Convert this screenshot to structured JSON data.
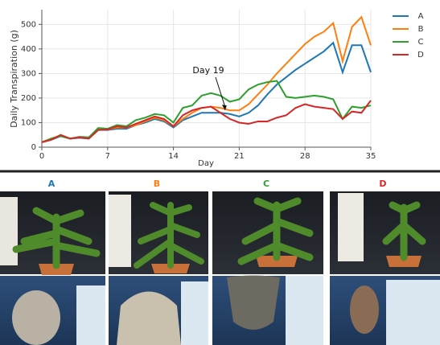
{
  "chart_data": {
    "type": "line",
    "x_label": "Day",
    "y_label": "Daily Transpiration (g)",
    "annotation": "Day 19",
    "x": [
      0,
      1,
      2,
      3,
      4,
      5,
      6,
      7,
      8,
      9,
      10,
      11,
      12,
      13,
      14,
      15,
      16,
      17,
      18,
      19,
      20,
      21,
      22,
      23,
      24,
      25,
      26,
      27,
      28,
      29,
      30,
      31,
      32,
      33,
      34,
      35
    ],
    "xlim": [
      0,
      35
    ],
    "xticks": [
      0,
      7,
      14,
      21,
      28,
      35
    ],
    "ylim": [
      0,
      560
    ],
    "yticks": [
      0,
      100,
      200,
      300,
      400,
      500
    ],
    "grid": true,
    "legend": "top-right",
    "series": [
      {
        "name": "A",
        "color": "#1f77b4",
        "values": [
          20,
          30,
          45,
          35,
          38,
          35,
          70,
          70,
          75,
          75,
          90,
          100,
          115,
          105,
          80,
          110,
          125,
          140,
          140,
          140,
          135,
          125,
          140,
          170,
          215,
          255,
          285,
          315,
          340,
          365,
          390,
          425,
          305,
          415,
          415,
          305
        ]
      },
      {
        "name": "B",
        "color": "#ff7f0e",
        "values": [
          20,
          35,
          48,
          35,
          40,
          38,
          75,
          72,
          80,
          80,
          90,
          105,
          120,
          110,
          85,
          115,
          140,
          160,
          165,
          160,
          150,
          150,
          175,
          215,
          255,
          300,
          340,
          380,
          420,
          450,
          470,
          505,
          350,
          490,
          530,
          415
        ]
      },
      {
        "name": "C",
        "color": "#2ca02c",
        "values": [
          20,
          35,
          45,
          35,
          42,
          40,
          78,
          75,
          90,
          85,
          110,
          120,
          135,
          130,
          100,
          160,
          170,
          210,
          220,
          210,
          185,
          195,
          235,
          255,
          265,
          270,
          205,
          200,
          205,
          210,
          205,
          195,
          115,
          165,
          160,
          170
        ]
      },
      {
        "name": "D",
        "color": "#d62728",
        "values": [
          20,
          30,
          50,
          35,
          40,
          35,
          70,
          72,
          85,
          80,
          95,
          110,
          125,
          115,
          85,
          130,
          150,
          160,
          165,
          140,
          115,
          100,
          95,
          105,
          105,
          120,
          130,
          160,
          175,
          165,
          160,
          155,
          115,
          145,
          140,
          190
        ]
      }
    ]
  },
  "panels": {
    "labels": [
      "A",
      "B",
      "C",
      "D"
    ],
    "colors": [
      "#1f77b4",
      "#ff7f0e",
      "#2ca02c",
      "#d62728"
    ]
  }
}
